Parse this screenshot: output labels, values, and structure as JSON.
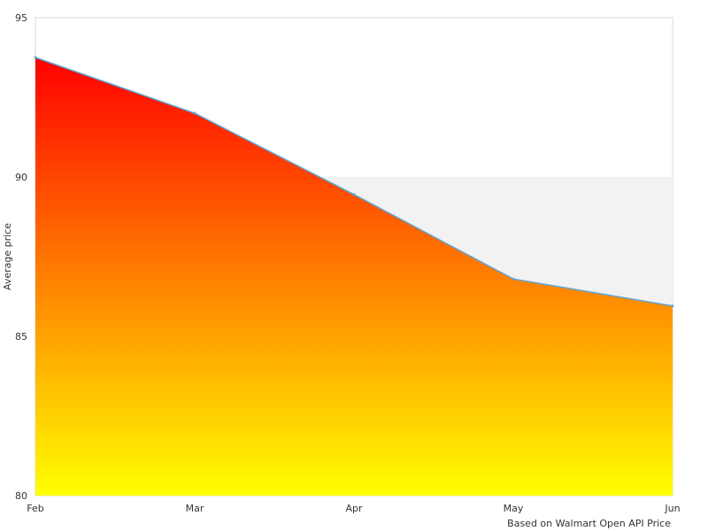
{
  "chart_data": {
    "type": "area",
    "categories": [
      "Feb",
      "Mar",
      "Apr",
      "May",
      "Jun"
    ],
    "values": [
      93.75,
      92.0,
      89.45,
      86.8,
      85.95
    ],
    "ylabel": "Average price",
    "ylim": [
      80,
      95
    ],
    "yticks": [
      "80",
      "85",
      "90",
      "95"
    ],
    "band": [
      85,
      90
    ],
    "credit": "Based on Walmart Open API Price",
    "colors": {
      "fill_top": "#ff0000",
      "fill_bottom": "#ffff00",
      "line": "#5fa3d6",
      "band": "#f2f2f2",
      "plot_border": "#d8d8d8"
    }
  }
}
